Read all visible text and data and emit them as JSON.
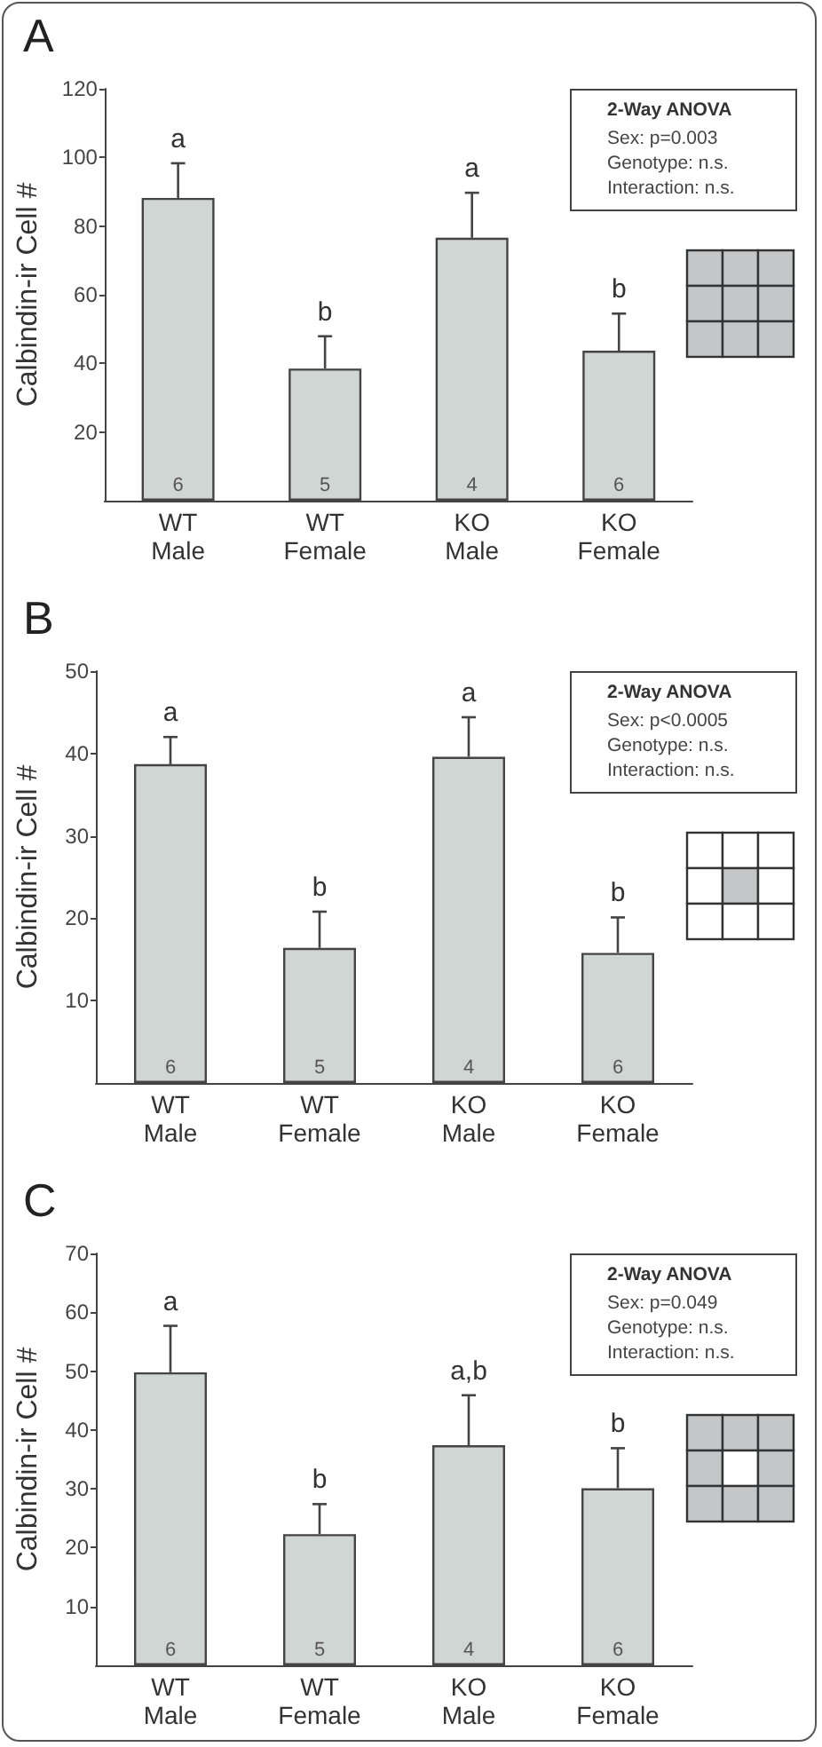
{
  "chart_data": [
    {
      "type": "bar",
      "title": "A",
      "ylabel": "Calbindin-ir Cell #",
      "categories": [
        "WT\nMale",
        "WT\nFemale",
        "KO\nMale",
        "KO\nFemale"
      ],
      "color": "#d0d6d4",
      "values": [
        88.2,
        38.5,
        76.6,
        43.7
      ],
      "errors": [
        [
          88.2,
          98.3
        ],
        [
          38.5,
          47.9
        ],
        [
          76.6,
          89.7
        ],
        [
          43.7,
          54.5
        ]
      ],
      "ylim": [
        0,
        120
      ],
      "yticks": [
        20,
        40,
        60,
        80,
        100,
        120
      ],
      "grid": false,
      "annotations": [
        {
          "text": "a",
          "x": "WT\nMale",
          "y": 98.3
        },
        {
          "text": "b",
          "x": "WT\nFemale",
          "y": 47.9
        },
        {
          "text": "a",
          "x": "KO\nMale",
          "y": 89.7
        },
        {
          "text": "b",
          "x": "KO\nFemale",
          "y": 54.5
        },
        {
          "text": "6",
          "x": "WT\nMale",
          "y": 0
        },
        {
          "text": "5",
          "x": "WT\nFemale",
          "y": 0
        },
        {
          "text": "4",
          "x": "KO\nMale",
          "y": 0
        },
        {
          "text": "6",
          "x": "KO\nFemale",
          "y": 0
        },
        "2-Way ANOVA",
        "Sex: p=0.003",
        "Genotype: n.s.",
        "Interaction: n.s."
      ]
    },
    {
      "type": "bar",
      "title": "B",
      "ylabel": "Calbindin-ir Cell #",
      "categories": [
        "WT\nMale",
        "WT\nFemale",
        "KO\nMale",
        "KO\nFemale"
      ],
      "color": "#d0d6d4",
      "values": [
        38.7,
        16.4,
        39.6,
        15.8
      ],
      "errors": [
        [
          38.7,
          42.0
        ],
        [
          16.4,
          20.8
        ],
        [
          39.6,
          44.4
        ],
        [
          15.8,
          20.1
        ]
      ],
      "ylim": [
        0,
        50
      ],
      "yticks": [
        10,
        20,
        30,
        40,
        50
      ],
      "grid": false,
      "annotations": [
        {
          "text": "a",
          "x": "WT\nMale",
          "y": 42.0
        },
        {
          "text": "b",
          "x": "WT\nFemale",
          "y": 20.8
        },
        {
          "text": "a",
          "x": "KO\nMale",
          "y": 44.4
        },
        {
          "text": "b",
          "x": "KO\nFemale",
          "y": 20.1
        },
        {
          "text": "6",
          "x": "WT\nMale",
          "y": 0
        },
        {
          "text": "5",
          "x": "WT\nFemale",
          "y": 0
        },
        {
          "text": "4",
          "x": "KO\nMale",
          "y": 0
        },
        {
          "text": "6",
          "x": "KO\nFemale",
          "y": 0
        },
        "2-Way ANOVA",
        "Sex: p<0.0005",
        "Genotype: n.s.",
        "Interaction: n.s."
      ]
    },
    {
      "type": "bar",
      "title": "C",
      "ylabel": "Calbindin-ir Cell #",
      "categories": [
        "WT\nMale",
        "WT\nFemale",
        "KO\nMale",
        "KO\nFemale"
      ],
      "color": "#d0d6d4",
      "values": [
        49.8,
        22.3,
        37.4,
        30.1
      ],
      "errors": [
        [
          49.8,
          57.7
        ],
        [
          22.3,
          27.4
        ],
        [
          37.4,
          45.9
        ],
        [
          30.1,
          36.9
        ]
      ],
      "ylim": [
        0,
        70
      ],
      "yticks": [
        10,
        20,
        30,
        40,
        50,
        60,
        70
      ],
      "grid": false,
      "annotations": [
        {
          "text": "a",
          "x": "WT\nMale",
          "y": 57.7
        },
        {
          "text": "b",
          "x": "WT\nFemale",
          "y": 27.4
        },
        {
          "text": "a,b",
          "x": "KO\nMale",
          "y": 45.9
        },
        {
          "text": "b",
          "x": "KO\nFemale",
          "y": 36.9
        },
        {
          "text": "6",
          "x": "WT\nMale",
          "y": 0
        },
        {
          "text": "5",
          "x": "WT\nFemale",
          "y": 0
        },
        {
          "text": "4",
          "x": "KO\nMale",
          "y": 0
        },
        {
          "text": "6",
          "x": "KO\nFemale",
          "y": 0
        },
        "2-Way ANOVA",
        "Sex: p=0.049",
        "Genotype: n.s.",
        "Interaction: n.s."
      ]
    }
  ]
}
